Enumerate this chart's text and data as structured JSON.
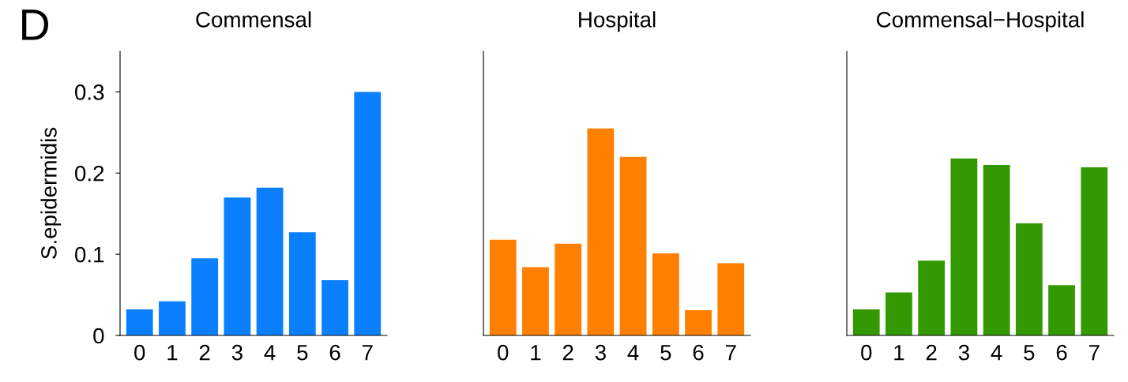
{
  "chart_data": [
    {
      "type": "bar",
      "title": "Commensal",
      "ylabel": "S.epidermidis",
      "annotations": [
        "D"
      ],
      "categories": [
        "0",
        "1",
        "2",
        "3",
        "4",
        "5",
        "6",
        "7"
      ],
      "values": [
        0.032,
        0.042,
        0.095,
        0.17,
        0.182,
        0.127,
        0.068,
        0.3
      ],
      "color": "#0a80ff",
      "ylim": [
        0,
        0.35
      ],
      "yticks": [
        0,
        0.1,
        0.2,
        0.3
      ]
    },
    {
      "type": "bar",
      "title": "Hospital",
      "categories": [
        "0",
        "1",
        "2",
        "3",
        "4",
        "5",
        "6",
        "7"
      ],
      "values": [
        0.118,
        0.084,
        0.113,
        0.255,
        0.22,
        0.101,
        0.031,
        0.089
      ],
      "color": "#ff8000",
      "ylim": [
        0,
        0.35
      ],
      "tick_labels": "x"
    },
    {
      "type": "bar",
      "title": "Commensal−Hospital",
      "categories": [
        "0",
        "1",
        "2",
        "3",
        "4",
        "5",
        "6",
        "7"
      ],
      "values": [
        0.032,
        0.053,
        0.092,
        0.218,
        0.21,
        0.138,
        0.062,
        0.207
      ],
      "color": "#339900",
      "ylim": [
        0,
        0.35
      ],
      "tick_labels": "x"
    }
  ]
}
